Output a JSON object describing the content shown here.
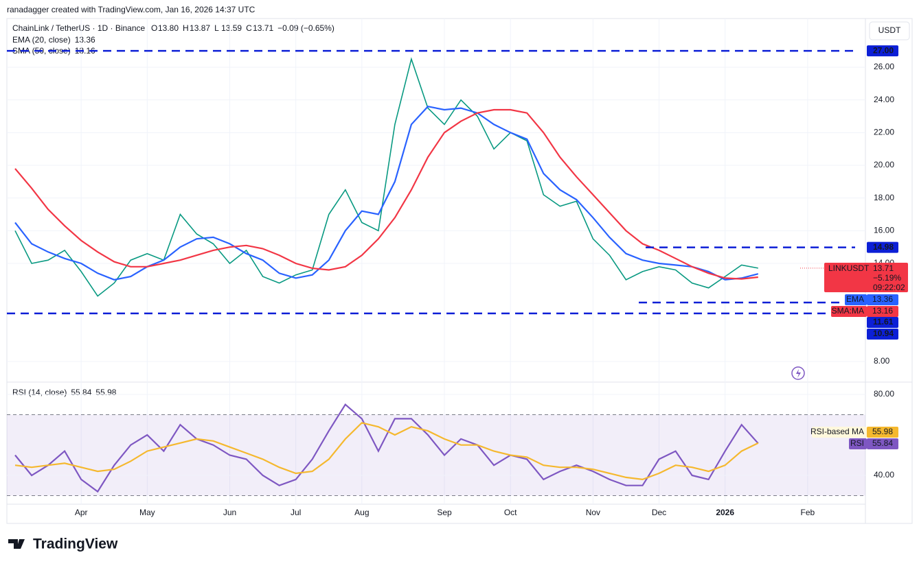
{
  "header": {
    "attribution": "ranadagger created with TradingView.com, Jan 16, 2026 14:37 UTC",
    "brand": "TradingView",
    "currency": "USDT"
  },
  "chart_data": [
    {
      "type": "line",
      "title": "ChainLink / TetherUS · 1D · Binance",
      "quote": [
        {
          "label": "O",
          "value": "13.80"
        },
        {
          "label": "H",
          "value": "13.87"
        },
        {
          "label": "L",
          "value": "13.59"
        },
        {
          "label": "C",
          "value": "13.71"
        },
        {
          "label": "",
          "value": "−0.09 (−0.65%)"
        }
      ],
      "indicators": [
        "EMA (20, close)",
        "SMA (50, close)"
      ],
      "change": "−5.19%",
      "countdown": "09:22:02",
      "categories": [
        null,
        null,
        null,
        null,
        "Apr",
        null,
        null,
        null,
        "May",
        null,
        null,
        null,
        null,
        "Jun",
        null,
        null,
        null,
        "Jul",
        null,
        null,
        null,
        "Aug",
        null,
        null,
        null,
        null,
        "Sep",
        null,
        null,
        null,
        "Oct",
        null,
        null,
        null,
        null,
        "Nov",
        null,
        null,
        null,
        "Dec",
        null,
        null,
        null,
        "2026",
        null,
        null,
        null,
        null,
        "Feb",
        null,
        null,
        null
      ],
      "series": [
        {
          "name": "LINKUSDT",
          "color": "#089981",
          "values": [
            16.0,
            14.0,
            14.2,
            14.8,
            13.5,
            12.0,
            12.8,
            14.2,
            14.6,
            14.2,
            17.0,
            15.8,
            15.2,
            14.0,
            14.8,
            13.2,
            12.8,
            13.3,
            13.6,
            17.0,
            18.5,
            16.5,
            16.0,
            22.5,
            26.5,
            23.5,
            22.5,
            24.0,
            23.0,
            21.0,
            22.0,
            21.5,
            18.2,
            17.5,
            17.8,
            15.5,
            14.5,
            13.0,
            13.5,
            13.8,
            13.6,
            12.8,
            12.5,
            13.2,
            13.9,
            13.71,
            null,
            null,
            null,
            null,
            null,
            null
          ]
        },
        {
          "name": "EMA",
          "color": "#2962ff",
          "values": [
            16.5,
            15.2,
            14.7,
            14.3,
            14.0,
            13.4,
            13.0,
            13.2,
            13.8,
            14.2,
            15.0,
            15.5,
            15.6,
            15.2,
            14.6,
            14.2,
            13.4,
            13.1,
            13.3,
            14.2,
            16.0,
            17.2,
            17.0,
            19.0,
            22.5,
            23.6,
            23.4,
            23.5,
            23.2,
            22.5,
            22.0,
            21.6,
            19.5,
            18.5,
            17.9,
            16.8,
            15.6,
            14.6,
            14.2,
            14.0,
            13.9,
            13.8,
            13.5,
            13.0,
            13.1,
            13.36,
            null,
            null,
            null,
            null,
            null,
            null
          ]
        },
        {
          "name": "SMA:MA",
          "color": "#f23645",
          "values": [
            19.8,
            18.6,
            17.3,
            16.3,
            15.4,
            14.7,
            14.1,
            13.8,
            13.8,
            14.0,
            14.2,
            14.5,
            14.8,
            15.0,
            15.1,
            14.9,
            14.5,
            14.0,
            13.7,
            13.6,
            13.8,
            14.5,
            15.5,
            16.8,
            18.5,
            20.5,
            22.0,
            22.7,
            23.2,
            23.4,
            23.4,
            23.2,
            22.0,
            20.5,
            19.3,
            18.2,
            17.1,
            16.0,
            15.2,
            14.8,
            14.3,
            13.8,
            13.4,
            13.1,
            13.05,
            13.16,
            null,
            null,
            null,
            null,
            null,
            null
          ]
        }
      ],
      "levels": [
        {
          "value": 27,
          "label": "27.00"
        },
        {
          "value": 14.98,
          "label": "14.98"
        },
        {
          "value": 11.61,
          "label": "11.61"
        },
        {
          "value": 10.94,
          "label": "10.94"
        }
      ],
      "level_color": "#0c1fd6",
      "ylim": [
        6.74,
        28.98
      ],
      "yticks": [
        {
          "value": 8,
          "label": "8.00"
        },
        {
          "value": 14,
          "label": "14.00"
        },
        {
          "value": 16,
          "label": "16.00"
        },
        {
          "value": 18,
          "label": "18.00"
        },
        {
          "value": 20,
          "label": "20.00"
        },
        {
          "value": 22,
          "label": "22.00"
        },
        {
          "value": 24,
          "label": "24.00"
        },
        {
          "value": 26,
          "label": "26.00"
        }
      ],
      "grid": true
    },
    {
      "type": "line",
      "title": "RSI (14, close)",
      "series": [
        {
          "name": "RSI",
          "color": "#7e57c2",
          "values": [
            50,
            40,
            45,
            52,
            38,
            32,
            45,
            55,
            60,
            52,
            65,
            58,
            55,
            50,
            48,
            40,
            35,
            38,
            48,
            62,
            75,
            68,
            52,
            68,
            68,
            60,
            50,
            58,
            55,
            45,
            50,
            48,
            38,
            42,
            45,
            42,
            38,
            35,
            35,
            48,
            52,
            40,
            38,
            52,
            65,
            55.84,
            null,
            null,
            null,
            null,
            null,
            null
          ]
        },
        {
          "name": "RSI-based MA",
          "color": "#f5b82e",
          "values": [
            45,
            44,
            45,
            46,
            44,
            42,
            43,
            47,
            52,
            54,
            56,
            58,
            57,
            54,
            51,
            48,
            44,
            41,
            42,
            48,
            58,
            66,
            64,
            60,
            64,
            62,
            58,
            55,
            55,
            52,
            50,
            49,
            45,
            44,
            44,
            43,
            41,
            39,
            38,
            41,
            45,
            44,
            42,
            45,
            52,
            55.98,
            null,
            null,
            null,
            null,
            null,
            null
          ]
        }
      ],
      "bands": [
        30,
        70
      ],
      "ylim": [
        25.76,
        86.1
      ],
      "yticks": [
        {
          "value": 40,
          "label": "40.00"
        },
        {
          "value": 80,
          "label": "80.00"
        }
      ],
      "grid": true
    }
  ]
}
